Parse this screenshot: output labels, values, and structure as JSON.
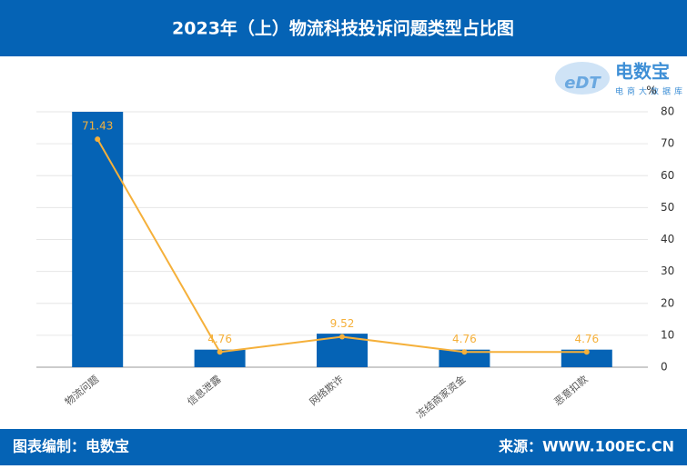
{
  "header": {
    "title": "2023年（上）物流科技投诉问题类型占比图"
  },
  "logo": {
    "name": "电数宝",
    "tagline": "电商大数据库"
  },
  "footer": {
    "left": "图表编制：电数宝",
    "right": "来源：WWW.100EC.CN"
  },
  "chart_data": {
    "type": "bar-line",
    "y_axis_label": "%",
    "categories": [
      "物流问题",
      "信息泄露",
      "网络欺诈",
      "冻结商家资金",
      "恶意扣款"
    ],
    "series": [
      {
        "type": "bar",
        "color": "#0563b5",
        "values": [
          80,
          5.5,
          10.5,
          5.5,
          5.5
        ]
      },
      {
        "type": "line",
        "color": "#f5b03a",
        "values": [
          71.43,
          4.76,
          9.52,
          4.76,
          4.76
        ]
      }
    ],
    "ylim": [
      0,
      80
    ],
    "yticks": [
      0,
      10,
      20,
      30,
      40,
      50,
      60,
      70,
      80
    ],
    "grid": true
  }
}
